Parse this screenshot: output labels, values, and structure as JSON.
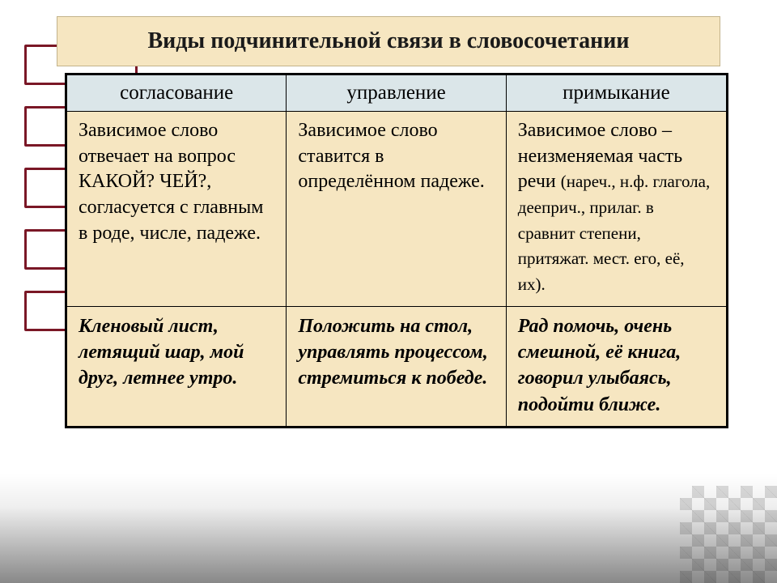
{
  "title": "Виды подчинительной связи в словосочетании",
  "decoration": {
    "border_colors": [
      "#7a1726",
      "#7a1726",
      "#7a1726",
      "#7a1726",
      "#7a1726"
    ]
  },
  "table": {
    "header_bg": "#dbe6e9",
    "body_bg": "#f6e6c1",
    "columns": [
      {
        "label": "согласование"
      },
      {
        "label": "управление"
      },
      {
        "label": "примыкание"
      }
    ],
    "desc_row": {
      "c1": "Зависимое слово отвечает на вопрос КАКОЙ? ЧЕЙ?, согласуется с главным в роде, числе, падеже.",
      "c2": "Зависимое слово ставится в определённом падеже.",
      "c3_main": "Зависимое слово – неизменяемая часть речи ",
      "c3_note": "(нареч., н.ф. глагола, дееприч., прилаг. в сравнит степени, притяжат. мест. его, её, их)."
    },
    "examples_row": {
      "c1": "Кленовый лист, летящий шар, мой друг, летнее утро.",
      "c2": "Положить на стол, управлять процессом, стремиться к победе.",
      "c3": "Рад помочь, очень смешной, её книга, говорил улыбаясь, подойти ближе."
    }
  },
  "colors": {
    "title_bg": "#f6e6c1",
    "title_border": "#c3b38b",
    "text": "#1a1a1a",
    "table_border": "#000000"
  }
}
